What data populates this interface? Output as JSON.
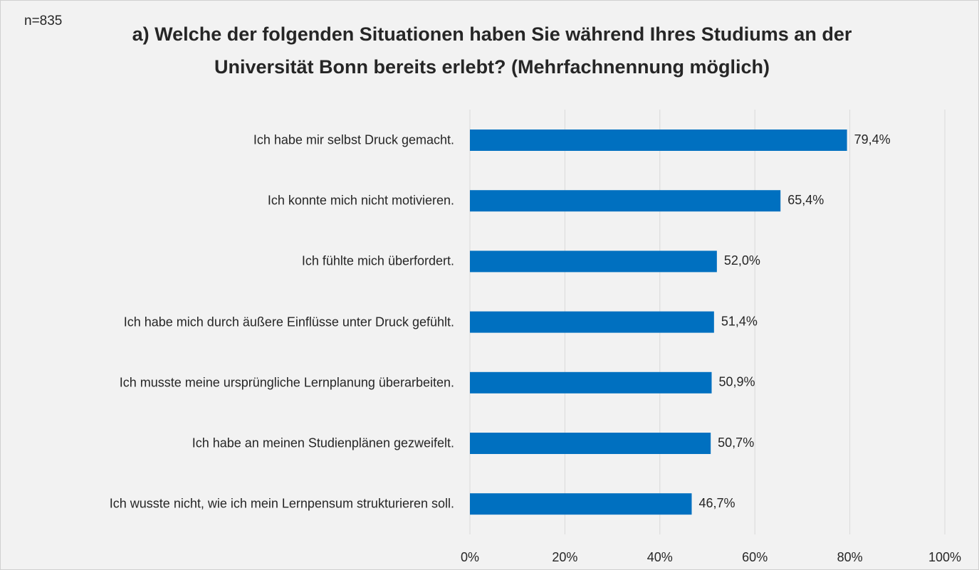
{
  "chart_data": {
    "type": "bar",
    "orientation": "horizontal",
    "note": "n=835",
    "title": "a) Welche der folgenden Situationen haben Sie während Ihres Studiums an der Universität Bonn bereits erlebt? (Mehrfachnennung möglich)",
    "categories": [
      "Ich habe mir selbst Druck gemacht.",
      "Ich konnte mich nicht motivieren.",
      "Ich fühlte mich überfordert.",
      "Ich habe mich durch äußere Einflüsse unter Druck gefühlt.",
      "Ich musste meine ursprüngliche Lernplanung überarbeiten.",
      "Ich habe an meinen Studienplänen gezweifelt.",
      "Ich wusste nicht, wie ich mein Lernpensum strukturieren soll."
    ],
    "values": [
      79.4,
      65.4,
      52.0,
      51.4,
      50.9,
      50.7,
      46.7
    ],
    "value_labels": [
      "79,4%",
      "65,4%",
      "52,0%",
      "51,4%",
      "50,9%",
      "50,7%",
      "46,7%"
    ],
    "color": "#0070c0",
    "xlim": [
      0,
      100
    ],
    "xticks": [
      {
        "value": 0,
        "label": "0%"
      },
      {
        "value": 20,
        "label": "20%"
      },
      {
        "value": 40,
        "label": "40%"
      },
      {
        "value": 60,
        "label": "60%"
      },
      {
        "value": 80,
        "label": "80%"
      },
      {
        "value": 100,
        "label": "100%"
      }
    ],
    "grid": true
  }
}
